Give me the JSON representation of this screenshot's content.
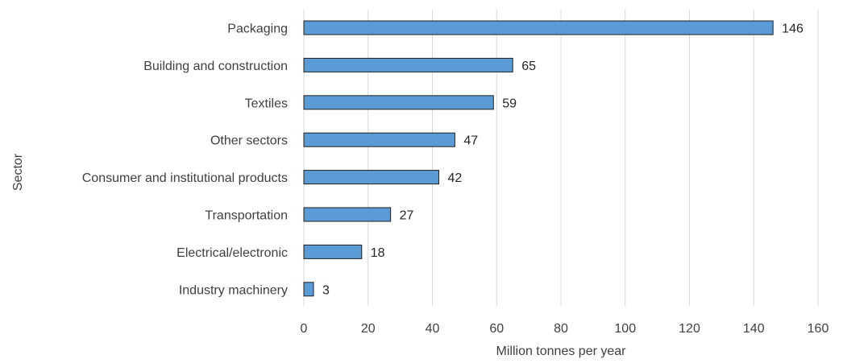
{
  "chart_data": {
    "type": "bar",
    "orientation": "horizontal",
    "categories": [
      "Packaging",
      "Building and construction",
      "Textiles",
      "Other sectors",
      "Consumer and institutional products",
      "Transportation",
      "Electrical/electronic",
      "Industry machinery"
    ],
    "values": [
      146,
      65,
      59,
      47,
      42,
      27,
      18,
      3
    ],
    "data_labels": [
      "146",
      "65",
      "59",
      "47",
      "42",
      "27",
      "18",
      "3"
    ],
    "xlabel": "Million tonnes per year",
    "ylabel": "Sector",
    "xlim": [
      0,
      160
    ],
    "xticks": [
      "0",
      "20",
      "40",
      "60",
      "80",
      "100",
      "120",
      "140",
      "160"
    ],
    "grid": "vertical",
    "bar_color": "#5b9bd5",
    "bar_outline": "#1f1f1f",
    "legend": "none"
  }
}
